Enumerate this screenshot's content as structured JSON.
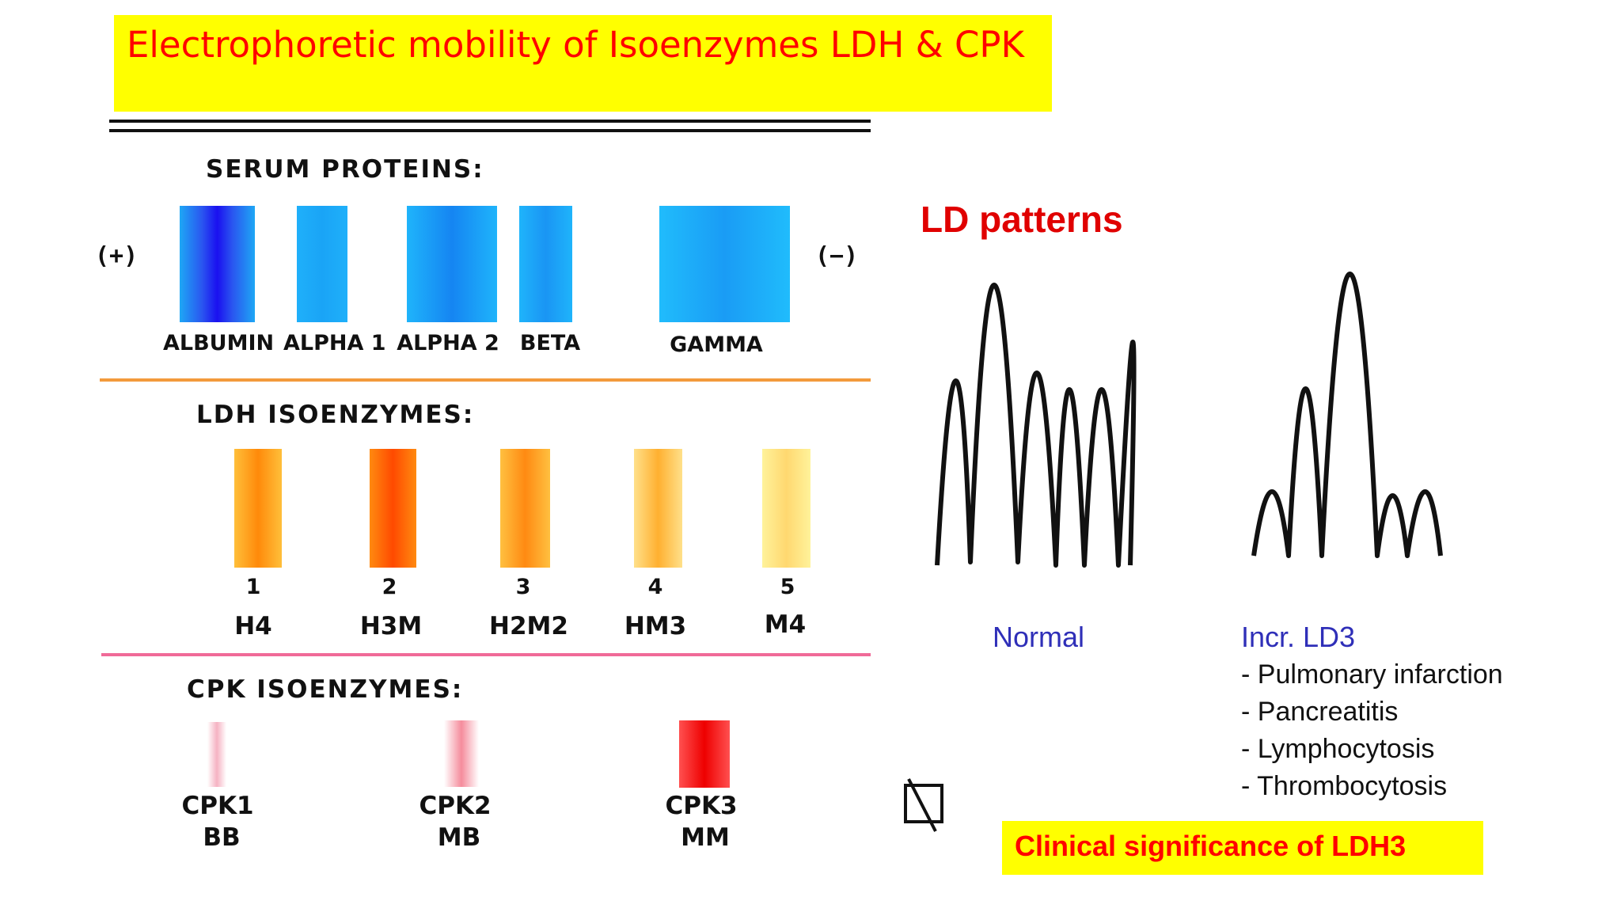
{
  "title": "Electrophoretic mobility of Isoenzymes LDH & CPK",
  "serum": {
    "heading": "SERUM PROTEINS:",
    "anode": "(+)",
    "cathode": "(−)",
    "labels": [
      "ALBUMIN",
      "ALPHA 1",
      "ALPHA 2",
      "BETA",
      "GAMMA"
    ]
  },
  "ldh": {
    "heading": "LDH ISOENZYMES:",
    "numbers": [
      "1",
      "2",
      "3",
      "4",
      "5"
    ],
    "forms": [
      "H4",
      "H3M",
      "H2M2",
      "HM3",
      "M4"
    ]
  },
  "cpk": {
    "heading": "CPK ISOENZYMES:",
    "names": [
      "CPK1",
      "CPK2",
      "CPK3"
    ],
    "forms": [
      "BB",
      "MB",
      "MM"
    ]
  },
  "ld_patterns": {
    "title": "LD patterns",
    "normal_label": "Normal",
    "incr_label": "Incr. LD3",
    "causes": [
      "- Pulmonary infarction",
      "- Pancreatitis",
      "- Lymphocytosis",
      "- Thrombocytosis"
    ]
  },
  "clinical": "Clinical significance of LDH3",
  "colors": {
    "title_bg": "#ffff00",
    "title_text": "#ff0000",
    "normal_label": "#2f2fb8",
    "incr_label": "#2f2fb8"
  },
  "icons": [
    "crossed-box-icon"
  ]
}
